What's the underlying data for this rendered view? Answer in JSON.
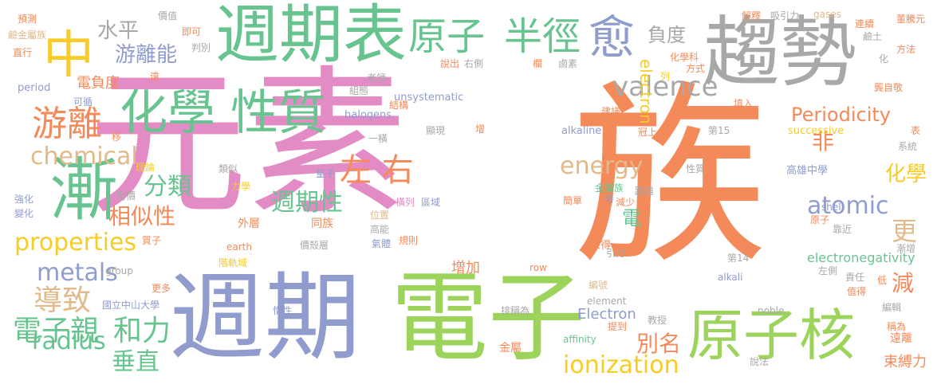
{
  "palette": {
    "pink": "#e38bc5",
    "orange": "#f48a5a",
    "gray": "#a8a8a8",
    "green": "#9cd35a",
    "teal": "#67c48f",
    "blue": "#8f9ccd",
    "yellow": "#f7cc26",
    "tan": "#e2b98a"
  },
  "words": [
    {
      "text": "元素",
      "color": "pink"
    },
    {
      "text": "族",
      "color": "orange"
    },
    {
      "text": "週期",
      "color": "blue"
    },
    {
      "text": "電子",
      "color": "green"
    },
    {
      "text": "週期表",
      "color": "teal"
    },
    {
      "text": "趨勢",
      "color": "gray"
    },
    {
      "text": "化學 性質",
      "color": "teal"
    },
    {
      "text": "原子核",
      "color": "green"
    },
    {
      "text": "原子",
      "color": "teal"
    },
    {
      "text": "半徑",
      "color": "teal"
    },
    {
      "text": "愈",
      "color": "blue"
    },
    {
      "text": "中",
      "color": "yellow"
    },
    {
      "text": "漸",
      "color": "teal"
    },
    {
      "text": "游離",
      "color": "orange"
    },
    {
      "text": "左 右",
      "color": "orange"
    },
    {
      "text": "Periodicity",
      "color": "orange"
    },
    {
      "text": "valence",
      "color": "gray"
    },
    {
      "text": "chemical",
      "color": "tan"
    },
    {
      "text": "electron",
      "color": "yellow"
    },
    {
      "text": "properties",
      "color": "yellow"
    },
    {
      "text": "radius",
      "color": "teal"
    },
    {
      "text": "metals",
      "color": "blue"
    },
    {
      "text": "ionization",
      "color": "yellow"
    },
    {
      "text": "energy",
      "color": "tan"
    },
    {
      "text": "atomic",
      "color": "blue"
    },
    {
      "text": "電子親",
      "color": "teal"
    },
    {
      "text": "和力",
      "color": "teal"
    },
    {
      "text": "導致",
      "color": "tan"
    },
    {
      "text": "垂直",
      "color": "teal"
    },
    {
      "text": "分類",
      "color": "teal"
    },
    {
      "text": "相似性",
      "color": "orange"
    },
    {
      "text": "週期性",
      "color": "teal"
    },
    {
      "text": "游離能",
      "color": "blue"
    },
    {
      "text": "水平",
      "color": "gray"
    },
    {
      "text": "負度",
      "color": "gray"
    },
    {
      "text": "非",
      "color": "orange"
    },
    {
      "text": "化學",
      "color": "yellow"
    },
    {
      "text": "更",
      "color": "tan"
    },
    {
      "text": "減",
      "color": "orange"
    },
    {
      "text": "別名",
      "color": "orange"
    },
    {
      "text": "電",
      "color": "teal"
    },
    {
      "text": "增加",
      "color": "orange"
    },
    {
      "text": "Electron",
      "color": "blue"
    },
    {
      "text": "electronegativity",
      "color": "teal"
    },
    {
      "text": "束縛力",
      "color": "orange"
    },
    {
      "text": "電負度",
      "color": "orange"
    },
    {
      "text": "unsystematic",
      "color": "blue"
    },
    {
      "text": "halogens",
      "color": "blue"
    },
    {
      "text": "alkaline",
      "color": "blue"
    },
    {
      "text": "successive",
      "color": "yellow"
    },
    {
      "text": "高雄中學",
      "color": "blue"
    },
    {
      "text": "國立中山大學",
      "color": "blue"
    },
    {
      "text": "period",
      "color": "blue"
    },
    {
      "text": "可循",
      "color": "blue"
    },
    {
      "text": "預測",
      "color": "orange"
    },
    {
      "text": "鹼金屬族",
      "color": "tan"
    },
    {
      "text": "直行",
      "color": "orange"
    },
    {
      "text": "價值",
      "color": "gray"
    },
    {
      "text": "即可",
      "color": "orange"
    },
    {
      "text": "判別",
      "color": "gray"
    },
    {
      "text": "遠",
      "color": "orange"
    },
    {
      "text": "老師",
      "color": "gray"
    },
    {
      "text": "組態",
      "color": "gray"
    },
    {
      "text": "結構",
      "color": "orange"
    },
    {
      "text": "顯現",
      "color": "gray"
    },
    {
      "text": "一橫",
      "color": "gray"
    },
    {
      "text": "移",
      "color": "orange"
    },
    {
      "text": "理論",
      "color": "yellow"
    },
    {
      "text": "類似",
      "color": "gray"
    },
    {
      "text": "量子",
      "color": "blue"
    },
    {
      "text": "力學",
      "color": "yellow"
    },
    {
      "text": "對價",
      "color": "gray"
    },
    {
      "text": "強化",
      "color": "blue"
    },
    {
      "text": "變化",
      "color": "blue"
    },
    {
      "text": "外層",
      "color": "orange"
    },
    {
      "text": "同族",
      "color": "orange"
    },
    {
      "text": "位置",
      "color": "tan"
    },
    {
      "text": "高能",
      "color": "gray"
    },
    {
      "text": "氣體",
      "color": "blue"
    },
    {
      "text": "規則",
      "color": "orange"
    },
    {
      "text": "區域",
      "color": "blue"
    },
    {
      "text": "橫列",
      "color": "pink"
    },
    {
      "text": "簡單",
      "color": "orange"
    },
    {
      "text": "金屬族",
      "color": "teal"
    },
    {
      "text": "距離",
      "color": "gray"
    },
    {
      "text": "時",
      "color": "blue"
    },
    {
      "text": "減少",
      "color": "orange"
    },
    {
      "text": "來得",
      "color": "orange"
    },
    {
      "text": "引力",
      "color": "gray"
    },
    {
      "text": "earth",
      "color": "orange"
    },
    {
      "text": "質子",
      "color": "orange"
    },
    {
      "text": "價殼層",
      "color": "gray"
    },
    {
      "text": "階軌域",
      "color": "yellow"
    },
    {
      "text": "group",
      "color": "gray"
    },
    {
      "text": "更多",
      "color": "orange"
    },
    {
      "text": "惰性",
      "color": "blue"
    },
    {
      "text": "row",
      "color": "orange"
    },
    {
      "text": "element",
      "color": "gray"
    },
    {
      "text": "編號",
      "color": "tan"
    },
    {
      "text": "排稱為",
      "color": "gray"
    },
    {
      "text": "提到",
      "color": "orange"
    },
    {
      "text": "教授",
      "color": "gray"
    },
    {
      "text": "affinity",
      "color": "teal"
    },
    {
      "text": "金屬",
      "color": "orange"
    },
    {
      "text": "noble",
      "color": "gray"
    },
    {
      "text": "說法",
      "color": "gray"
    },
    {
      "text": "alkali",
      "color": "blue"
    },
    {
      "text": "第14",
      "color": "gray"
    },
    {
      "text": "左側",
      "color": "gray"
    },
    {
      "text": "責任",
      "color": "gray"
    },
    {
      "text": "值得",
      "color": "orange"
    },
    {
      "text": "低",
      "color": "orange"
    },
    {
      "text": "編輯",
      "color": "gray"
    },
    {
      "text": "稱為",
      "color": "orange"
    },
    {
      "text": "遠離",
      "color": "orange"
    },
    {
      "text": "shell",
      "color": "blue"
    },
    {
      "text": "原子",
      "color": "orange"
    },
    {
      "text": "靠近",
      "color": "gray"
    },
    {
      "text": "漸增",
      "color": "gray"
    },
    {
      "text": "系統",
      "color": "gray"
    },
    {
      "text": "表",
      "color": "orange"
    },
    {
      "text": "冠上",
      "color": "orange"
    },
    {
      "text": "第15",
      "color": "gray"
    },
    {
      "text": "建議",
      "color": "orange"
    },
    {
      "text": "性質",
      "color": "gray"
    },
    {
      "text": "填入",
      "color": "orange"
    },
    {
      "text": "龔自敬",
      "color": "orange"
    },
    {
      "text": "吸引力",
      "color": "gray"
    },
    {
      "text": "gases",
      "color": "tan"
    },
    {
      "text": "董騰元",
      "color": "orange"
    },
    {
      "text": "解釋",
      "color": "orange"
    },
    {
      "text": "連續",
      "color": "orange"
    },
    {
      "text": "鹼土",
      "color": "gray"
    },
    {
      "text": "方法",
      "color": "orange"
    },
    {
      "text": "化學科",
      "color": "orange"
    },
    {
      "text": "化",
      "color": "gray"
    },
    {
      "text": "方式",
      "color": "orange"
    },
    {
      "text": "列",
      "color": "yellow"
    },
    {
      "text": "鹵素",
      "color": "gray"
    },
    {
      "text": "欄",
      "color": "orange"
    },
    {
      "text": "右側",
      "color": "gray"
    },
    {
      "text": "說出",
      "color": "orange"
    },
    {
      "text": "增",
      "color": "orange"
    }
  ]
}
